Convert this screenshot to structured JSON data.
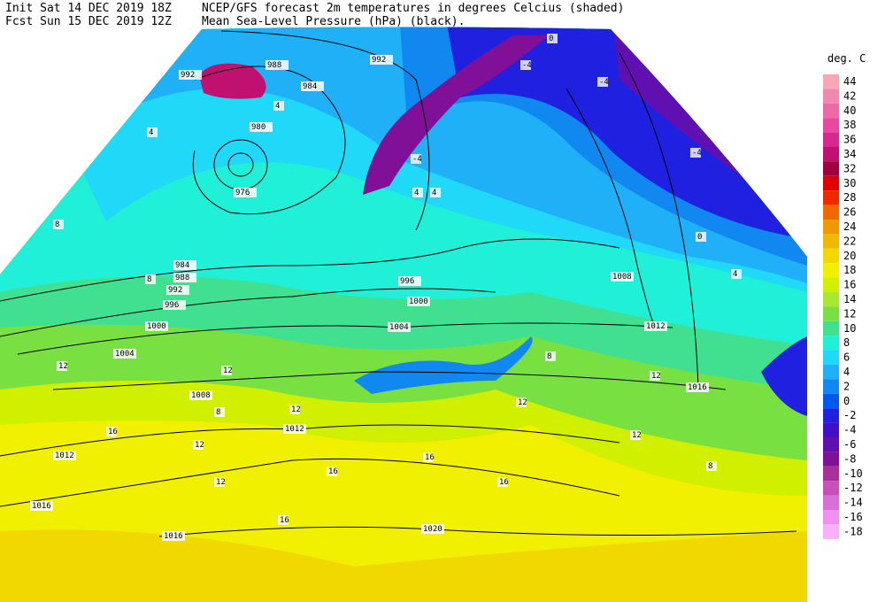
{
  "header": {
    "init": "Init  Sat 14 DEC 2019 18Z",
    "fcst": "Fcst Sun 15 DEC 2019 12Z",
    "title1": "NCEP/GFS forecast 2m temperatures in degrees Celcius (shaded)",
    "title2": "Mean Sea-Level Pressure (hPa) (black)."
  },
  "legend": {
    "title": "deg. C",
    "levels": [
      44,
      42,
      40,
      38,
      36,
      34,
      32,
      30,
      28,
      26,
      24,
      22,
      20,
      18,
      16,
      14,
      12,
      10,
      8,
      6,
      4,
      2,
      0,
      -2,
      -4,
      -6,
      -8,
      -10,
      -12,
      -14,
      -16,
      -18
    ],
    "colors": [
      "#f6a8b4",
      "#f088b0",
      "#f068a8",
      "#e848a0",
      "#d82890",
      "#c01070",
      "#a00040",
      "#e00000",
      "#f02800",
      "#f06800",
      "#f09800",
      "#f0b800",
      "#f0d800",
      "#f0f000",
      "#d0f000",
      "#a8e830",
      "#78e040",
      "#40e090",
      "#20f0d8",
      "#20d8f8",
      "#20b0f8",
      "#1088f0",
      "#0058f0",
      "#2020e0",
      "#4010c8",
      "#6010b0",
      "#801098",
      "#a83098",
      "#c850b8",
      "#d870d8",
      "#f090f0",
      "#f8b0f8"
    ]
  },
  "isobar_labels": [
    988,
    992,
    984,
    980,
    976,
    992,
    984,
    988,
    992,
    996,
    1000,
    1004,
    1008,
    1012,
    1012,
    1016,
    1016,
    1020,
    996,
    1000,
    1004,
    1008,
    1012,
    1016
  ],
  "temperature_labels": [
    4,
    4,
    8,
    8,
    12,
    12,
    8,
    12,
    16,
    12,
    12,
    16,
    16,
    16,
    12,
    12,
    12,
    8,
    16,
    4,
    0,
    -4,
    -4,
    -4,
    -4,
    0,
    4,
    4,
    8
  ]
}
